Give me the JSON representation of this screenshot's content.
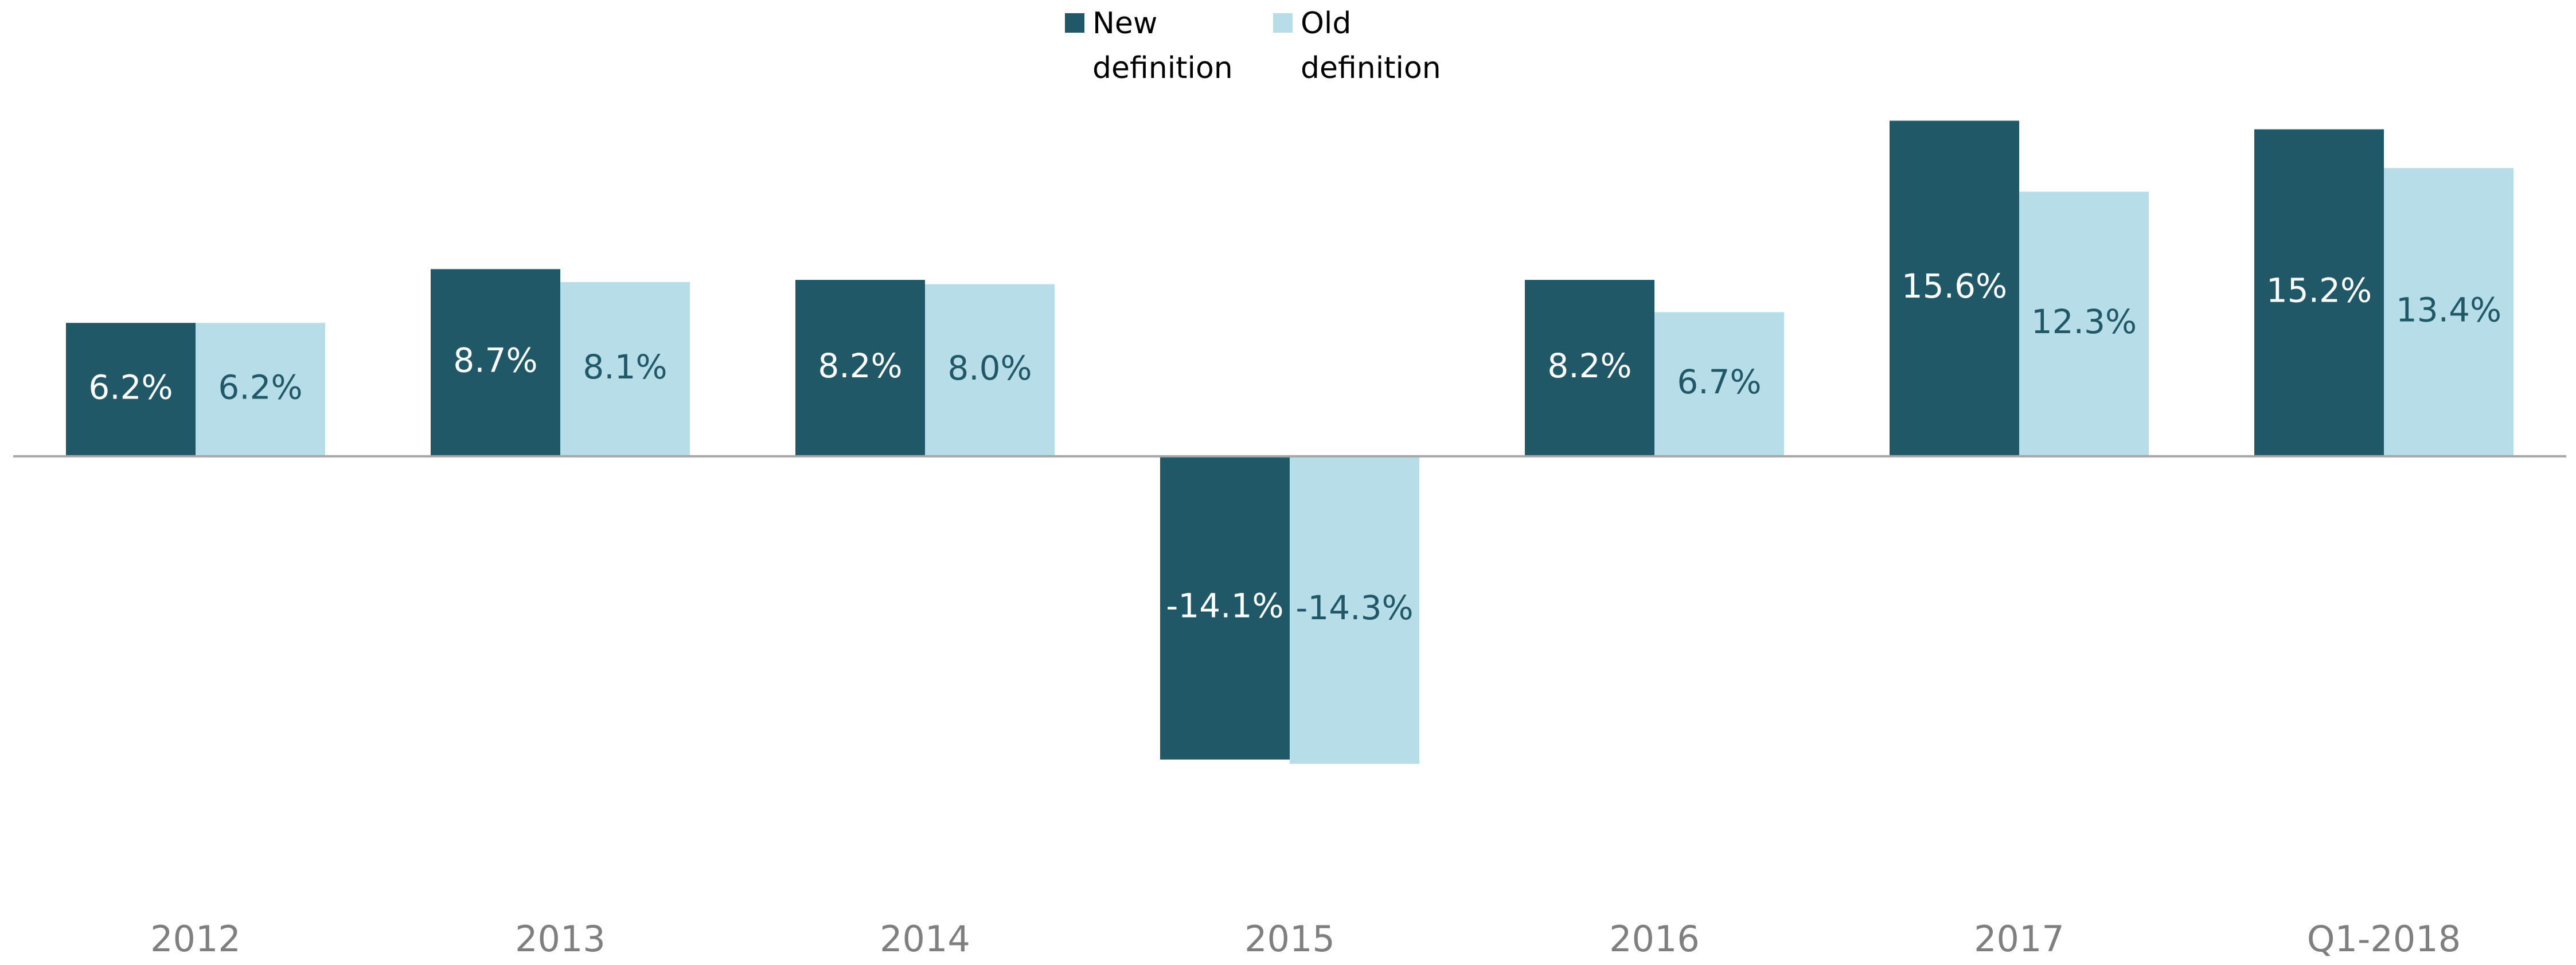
{
  "chart_data": {
    "type": "bar",
    "categories": [
      "2012",
      "2013",
      "2014",
      "2015",
      "2016",
      "2017",
      "Q1-2018"
    ],
    "series": [
      {
        "name": "New definition",
        "color": "#215868",
        "values": [
          6.2,
          8.7,
          8.2,
          -14.1,
          8.2,
          15.6,
          15.2
        ],
        "value_labels": [
          "6.2%",
          "8.7%",
          "8.2%",
          "-14.1%",
          "8.2%",
          "15.6%",
          "15.2%"
        ]
      },
      {
        "name": "Old definition",
        "color": "#b7dde8",
        "values": [
          6.2,
          8.1,
          8.0,
          -14.3,
          6.7,
          12.3,
          13.4
        ],
        "value_labels": [
          "6.2%",
          "8.1%",
          "8.0%",
          "-14.3%",
          "6.7%",
          "12.3%",
          "13.4%"
        ]
      }
    ],
    "ylim": [
      -20,
      17
    ]
  }
}
